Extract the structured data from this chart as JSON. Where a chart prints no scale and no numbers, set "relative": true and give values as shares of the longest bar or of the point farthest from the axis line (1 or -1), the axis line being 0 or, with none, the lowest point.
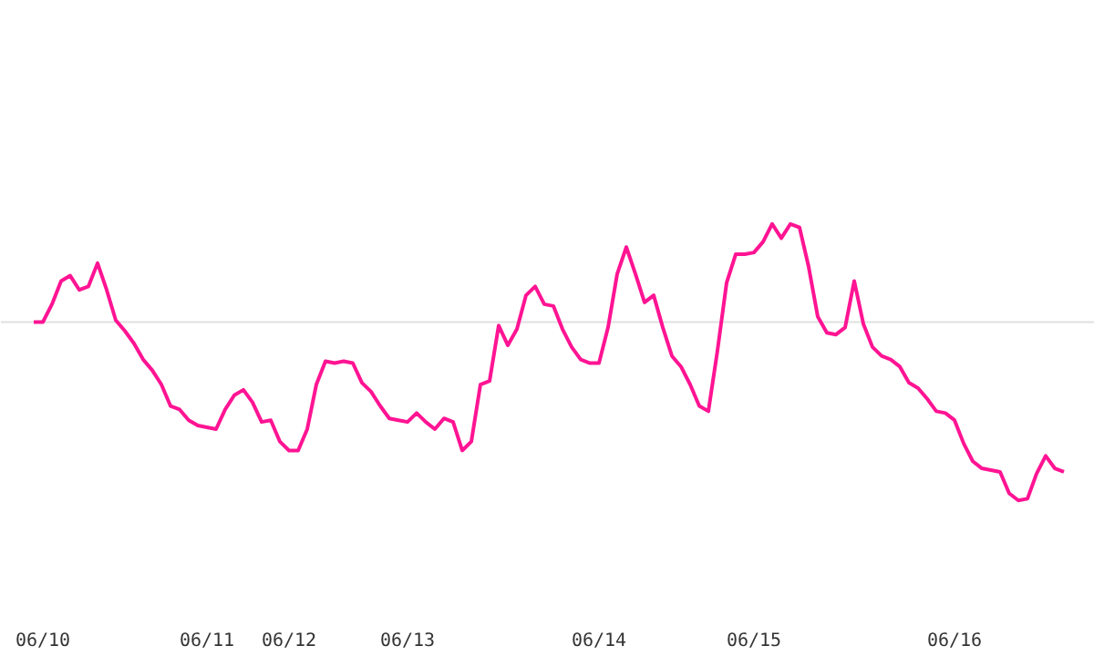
{
  "chart_data": {
    "type": "line",
    "relative": true,
    "categories": [
      null,
      "06/10",
      null,
      null,
      null,
      null,
      null,
      null,
      null,
      null,
      null,
      null,
      null,
      null,
      null,
      null,
      null,
      null,
      null,
      "06/11",
      null,
      null,
      null,
      null,
      null,
      null,
      null,
      null,
      "06/12",
      null,
      null,
      null,
      null,
      null,
      null,
      null,
      null,
      null,
      null,
      null,
      null,
      "06/13",
      null,
      null,
      null,
      null,
      null,
      null,
      null,
      null,
      null,
      null,
      null,
      null,
      null,
      null,
      null,
      null,
      null,
      null,
      null,
      null,
      "06/14",
      null,
      null,
      null,
      null,
      null,
      null,
      null,
      null,
      null,
      null,
      null,
      null,
      null,
      null,
      null,
      null,
      "06/15",
      null,
      null,
      null,
      null,
      null,
      null,
      null,
      null,
      null,
      null,
      null,
      null,
      null,
      null,
      null,
      null,
      null,
      null,
      null,
      null,
      null,
      "06/16",
      null,
      null,
      null,
      null,
      null,
      null,
      null,
      null,
      null,
      null,
      null,
      null
    ],
    "series": [
      {
        "color": "#ff1493",
        "values": [
          0,
          0,
          0.1,
          0.23,
          0.26,
          0.18,
          0.2,
          0.33,
          0.18,
          0.01,
          -0.05,
          -0.12,
          -0.21,
          -0.27,
          -0.35,
          -0.47,
          -0.49,
          -0.55,
          -0.58,
          -0.59,
          -0.6,
          -0.49,
          -0.41,
          -0.38,
          -0.45,
          -0.56,
          -0.55,
          -0.67,
          -0.72,
          -0.72,
          -0.6,
          -0.35,
          -0.22,
          -0.23,
          -0.22,
          -0.23,
          -0.34,
          -0.39,
          -0.47,
          -0.54,
          -0.55,
          -0.56,
          -0.51,
          -0.56,
          -0.6,
          -0.54,
          -0.56,
          -0.72,
          -0.67,
          -0.35,
          -0.33,
          -0.02,
          -0.13,
          -0.04,
          0.15,
          0.2,
          0.1,
          0.09,
          -0.04,
          -0.14,
          -0.21,
          -0.23,
          -0.23,
          -0.03,
          0.27,
          0.42,
          0.27,
          0.11,
          0.15,
          -0.03,
          -0.19,
          -0.25,
          -0.35,
          -0.47,
          -0.5,
          -0.16,
          0.22,
          0.38,
          0.38,
          0.39,
          0.45,
          0.55,
          0.47,
          0.55,
          0.53,
          0.31,
          0.03,
          -0.06,
          -0.07,
          -0.03,
          0.23,
          -0.01,
          -0.14,
          -0.19,
          -0.21,
          -0.25,
          -0.34,
          -0.37,
          -0.43,
          -0.5,
          -0.51,
          -0.55,
          -0.68,
          -0.78,
          -0.82,
          -0.83,
          -0.84,
          -0.96,
          -1.0,
          -0.99,
          -0.85,
          -0.75,
          -0.82,
          -0.84
        ]
      }
    ],
    "grid": false,
    "marker": "none",
    "line_style": "solid"
  }
}
